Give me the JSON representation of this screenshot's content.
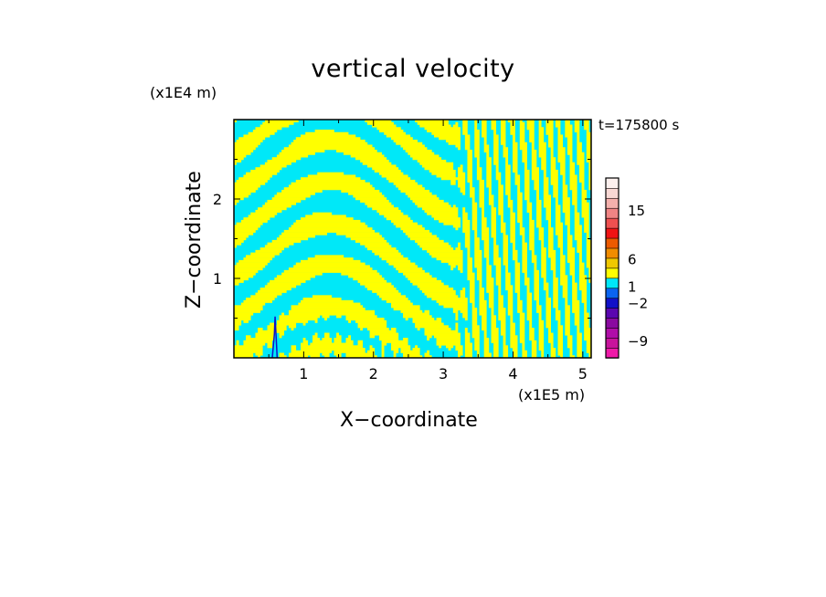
{
  "chart_data": {
    "type": "heatmap",
    "title": "vertical velocity",
    "xlabel": "X−coordinate",
    "ylabel": "Z−coordinate",
    "x_unit_label": "(x1E5 m)",
    "y_unit_label": "(x1E4 m)",
    "annotation": "t=175800 s",
    "xlim": [
      0,
      5.12
    ],
    "ylim": [
      0,
      3.0
    ],
    "x_ticks": [
      1,
      2,
      3,
      4,
      5
    ],
    "y_ticks": [
      1,
      2
    ],
    "x_tick_labels": [
      "1",
      "2",
      "3",
      "4",
      "5"
    ],
    "y_tick_labels": [
      "1",
      "2"
    ],
    "grid": false,
    "colorbar": {
      "levels": [
        {
          "color": "#ee1aa8"
        },
        {
          "color": "#c8149c"
        },
        {
          "color": "#b00ea8"
        },
        {
          "color": "#8a0aa0"
        },
        {
          "color": "#5a06b0"
        },
        {
          "color": "#1010c8"
        },
        {
          "color": "#0a64f0"
        },
        {
          "color": "#00e8f8"
        },
        {
          "color": "#ffff00"
        },
        {
          "color": "#f0c800"
        },
        {
          "color": "#f08c00"
        },
        {
          "color": "#ec5a00"
        },
        {
          "color": "#f01414"
        },
        {
          "color": "#ee5050"
        },
        {
          "color": "#f08484"
        },
        {
          "color": "#f4b0ac"
        },
        {
          "color": "#f8d8d4"
        },
        {
          "color": "#fcf0ee"
        }
      ],
      "tick_labels": [
        {
          "label": "15",
          "value": 15
        },
        {
          "label": "6",
          "value": 6
        },
        {
          "label": "1",
          "value": 1
        },
        {
          "label": "−2",
          "value": -2
        },
        {
          "label": "−9",
          "value": -9
        }
      ]
    },
    "field_colors": {
      "positive": "#ffff00",
      "negative": "#00e8f8",
      "strong_negative": "#1010c8"
    },
    "description_of_field": "alternating up/down velocity bands over the domain"
  }
}
